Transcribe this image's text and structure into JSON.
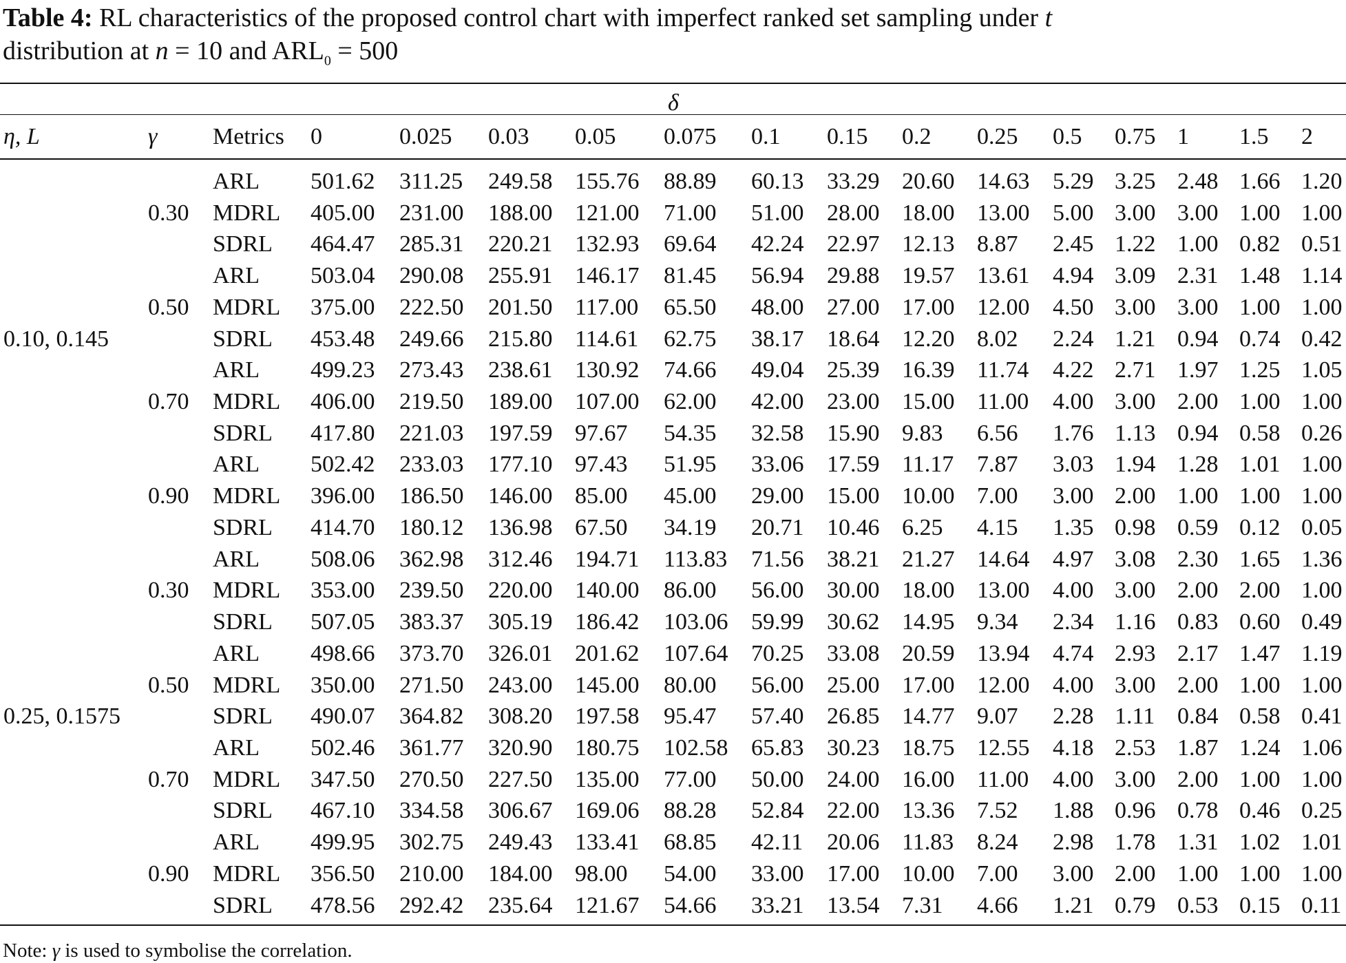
{
  "title": {
    "label": "Table 4:",
    "text_1": " RL characteristics of the proposed control chart with imperfect ranked set sampling under ",
    "t": "t",
    "text_2": "distribution at ",
    "n": "n",
    "text_3": " = 10 and ARL",
    "sub": "0",
    "text_4": " = 500"
  },
  "table": {
    "spanner": "δ",
    "headers": [
      "η,  L",
      "γ",
      "Metrics"
    ],
    "deltas": [
      0,
      0.025,
      0.03,
      0.05,
      0.075,
      0.1,
      0.15,
      0.2,
      0.25,
      0.5,
      0.75,
      1,
      1.5,
      2
    ],
    "groups": [
      {
        "label": "0.10, 0.145",
        "subgroups": [
          {
            "gamma": "0.30",
            "rows": [
              {
                "metric": "ARL",
                "values": [
                  "501.62",
                  "311.25",
                  "249.58",
                  "155.76",
                  "88.89",
                  "60.13",
                  "33.29",
                  "20.60",
                  "14.63",
                  "5.29",
                  "3.25",
                  "2.48",
                  "1.66",
                  "1.20"
                ]
              },
              {
                "metric": "MDRL",
                "values": [
                  "405.00",
                  "231.00",
                  "188.00",
                  "121.00",
                  "71.00",
                  "51.00",
                  "28.00",
                  "18.00",
                  "13.00",
                  "5.00",
                  "3.00",
                  "3.00",
                  "1.00",
                  "1.00"
                ]
              },
              {
                "metric": "SDRL",
                "values": [
                  "464.47",
                  "285.31",
                  "220.21",
                  "132.93",
                  "69.64",
                  "42.24",
                  "22.97",
                  "12.13",
                  "8.87",
                  "2.45",
                  "1.22",
                  "1.00",
                  "0.82",
                  "0.51"
                ]
              }
            ]
          },
          {
            "gamma": "0.50",
            "rows": [
              {
                "metric": "ARL",
                "values": [
                  "503.04",
                  "290.08",
                  "255.91",
                  "146.17",
                  "81.45",
                  "56.94",
                  "29.88",
                  "19.57",
                  "13.61",
                  "4.94",
                  "3.09",
                  "2.31",
                  "1.48",
                  "1.14"
                ]
              },
              {
                "metric": "MDRL",
                "values": [
                  "375.00",
                  "222.50",
                  "201.50",
                  "117.00",
                  "65.50",
                  "48.00",
                  "27.00",
                  "17.00",
                  "12.00",
                  "4.50",
                  "3.00",
                  "3.00",
                  "1.00",
                  "1.00"
                ]
              },
              {
                "metric": "SDRL",
                "values": [
                  "453.48",
                  "249.66",
                  "215.80",
                  "114.61",
                  "62.75",
                  "38.17",
                  "18.64",
                  "12.20",
                  "8.02",
                  "2.24",
                  "1.21",
                  "0.94",
                  "0.74",
                  "0.42"
                ]
              }
            ]
          },
          {
            "gamma": "0.70",
            "rows": [
              {
                "metric": "ARL",
                "values": [
                  "499.23",
                  "273.43",
                  "238.61",
                  "130.92",
                  "74.66",
                  "49.04",
                  "25.39",
                  "16.39",
                  "11.74",
                  "4.22",
                  "2.71",
                  "1.97",
                  "1.25",
                  "1.05"
                ]
              },
              {
                "metric": "MDRL",
                "values": [
                  "406.00",
                  "219.50",
                  "189.00",
                  "107.00",
                  "62.00",
                  "42.00",
                  "23.00",
                  "15.00",
                  "11.00",
                  "4.00",
                  "3.00",
                  "2.00",
                  "1.00",
                  "1.00"
                ]
              },
              {
                "metric": "SDRL",
                "values": [
                  "417.80",
                  "221.03",
                  "197.59",
                  "97.67",
                  "54.35",
                  "32.58",
                  "15.90",
                  "9.83",
                  "6.56",
                  "1.76",
                  "1.13",
                  "0.94",
                  "0.58",
                  "0.26"
                ]
              }
            ]
          },
          {
            "gamma": "0.90",
            "rows": [
              {
                "metric": "ARL",
                "values": [
                  "502.42",
                  "233.03",
                  "177.10",
                  "97.43",
                  "51.95",
                  "33.06",
                  "17.59",
                  "11.17",
                  "7.87",
                  "3.03",
                  "1.94",
                  "1.28",
                  "1.01",
                  "1.00"
                ]
              },
              {
                "metric": "MDRL",
                "values": [
                  "396.00",
                  "186.50",
                  "146.00",
                  "85.00",
                  "45.00",
                  "29.00",
                  "15.00",
                  "10.00",
                  "7.00",
                  "3.00",
                  "2.00",
                  "1.00",
                  "1.00",
                  "1.00"
                ]
              },
              {
                "metric": "SDRL",
                "values": [
                  "414.70",
                  "180.12",
                  "136.98",
                  "67.50",
                  "34.19",
                  "20.71",
                  "10.46",
                  "6.25",
                  "4.15",
                  "1.35",
                  "0.98",
                  "0.59",
                  "0.12",
                  "0.05"
                ]
              }
            ]
          }
        ]
      },
      {
        "label": "0.25, 0.1575",
        "subgroups": [
          {
            "gamma": "0.30",
            "rows": [
              {
                "metric": "ARL",
                "values": [
                  "508.06",
                  "362.98",
                  "312.46",
                  "194.71",
                  "113.83",
                  "71.56",
                  "38.21",
                  "21.27",
                  "14.64",
                  "4.97",
                  "3.08",
                  "2.30",
                  "1.65",
                  "1.36"
                ]
              },
              {
                "metric": "MDRL",
                "values": [
                  "353.00",
                  "239.50",
                  "220.00",
                  "140.00",
                  "86.00",
                  "56.00",
                  "30.00",
                  "18.00",
                  "13.00",
                  "4.00",
                  "3.00",
                  "2.00",
                  "2.00",
                  "1.00"
                ]
              },
              {
                "metric": "SDRL",
                "values": [
                  "507.05",
                  "383.37",
                  "305.19",
                  "186.42",
                  "103.06",
                  "59.99",
                  "30.62",
                  "14.95",
                  "9.34",
                  "2.34",
                  "1.16",
                  "0.83",
                  "0.60",
                  "0.49"
                ]
              }
            ]
          },
          {
            "gamma": "0.50",
            "rows": [
              {
                "metric": "ARL",
                "values": [
                  "498.66",
                  "373.70",
                  "326.01",
                  "201.62",
                  "107.64",
                  "70.25",
                  "33.08",
                  "20.59",
                  "13.94",
                  "4.74",
                  "2.93",
                  "2.17",
                  "1.47",
                  "1.19"
                ]
              },
              {
                "metric": "MDRL",
                "values": [
                  "350.00",
                  "271.50",
                  "243.00",
                  "145.00",
                  "80.00",
                  "56.00",
                  "25.00",
                  "17.00",
                  "12.00",
                  "4.00",
                  "3.00",
                  "2.00",
                  "1.00",
                  "1.00"
                ]
              },
              {
                "metric": "SDRL",
                "values": [
                  "490.07",
                  "364.82",
                  "308.20",
                  "197.58",
                  "95.47",
                  "57.40",
                  "26.85",
                  "14.77",
                  "9.07",
                  "2.28",
                  "1.11",
                  "0.84",
                  "0.58",
                  "0.41"
                ]
              }
            ]
          },
          {
            "gamma": "0.70",
            "rows": [
              {
                "metric": "ARL",
                "values": [
                  "502.46",
                  "361.77",
                  "320.90",
                  "180.75",
                  "102.58",
                  "65.83",
                  "30.23",
                  "18.75",
                  "12.55",
                  "4.18",
                  "2.53",
                  "1.87",
                  "1.24",
                  "1.06"
                ]
              },
              {
                "metric": "MDRL",
                "values": [
                  "347.50",
                  "270.50",
                  "227.50",
                  "135.00",
                  "77.00",
                  "50.00",
                  "24.00",
                  "16.00",
                  "11.00",
                  "4.00",
                  "3.00",
                  "2.00",
                  "1.00",
                  "1.00"
                ]
              },
              {
                "metric": "SDRL",
                "values": [
                  "467.10",
                  "334.58",
                  "306.67",
                  "169.06",
                  "88.28",
                  "52.84",
                  "22.00",
                  "13.36",
                  "7.52",
                  "1.88",
                  "0.96",
                  "0.78",
                  "0.46",
                  "0.25"
                ]
              }
            ]
          },
          {
            "gamma": "0.90",
            "rows": [
              {
                "metric": "ARL",
                "values": [
                  "499.95",
                  "302.75",
                  "249.43",
                  "133.41",
                  "68.85",
                  "42.11",
                  "20.06",
                  "11.83",
                  "8.24",
                  "2.98",
                  "1.78",
                  "1.31",
                  "1.02",
                  "1.01"
                ]
              },
              {
                "metric": "MDRL",
                "values": [
                  "356.50",
                  "210.00",
                  "184.00",
                  "98.00",
                  "54.00",
                  "33.00",
                  "17.00",
                  "10.00",
                  "7.00",
                  "3.00",
                  "2.00",
                  "1.00",
                  "1.00",
                  "1.00"
                ]
              },
              {
                "metric": "SDRL",
                "values": [
                  "478.56",
                  "292.42",
                  "235.64",
                  "121.67",
                  "54.66",
                  "33.21",
                  "13.54",
                  "7.31",
                  "4.66",
                  "1.21",
                  "0.79",
                  "0.53",
                  "0.15",
                  "0.11"
                ]
              }
            ]
          }
        ]
      }
    ]
  },
  "note": {
    "prefix": "Note: ",
    "symbol": "γ",
    "text": " is used to symbolise the correlation."
  }
}
